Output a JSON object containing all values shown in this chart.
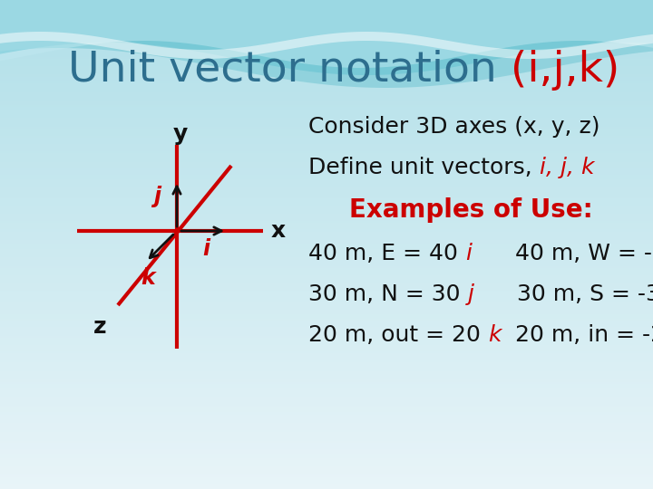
{
  "title_regular": "Unit vector notation ",
  "title_colored": "(i,j,k)",
  "title_teal": "#2d6e8e",
  "title_red": "#cc0000",
  "title_fontsize": 34,
  "bg_body_color": "#e8f4f8",
  "consider_text": "Consider 3D axes (x, y, z)",
  "define_regular": "Define unit vectors, ",
  "define_ijk": "i, j, k",
  "define_ijk_color": "#cc0000",
  "examples_title": "Examples of Use:",
  "examples_color": "#cc0000",
  "axis_color": "#cc0000",
  "arrow_color": "#111111",
  "label_color": "#111111",
  "body_fontsize": 18,
  "body_color": "#111111",
  "wave1_color": "#7dd4e0",
  "wave2_color": "#a8dde8"
}
